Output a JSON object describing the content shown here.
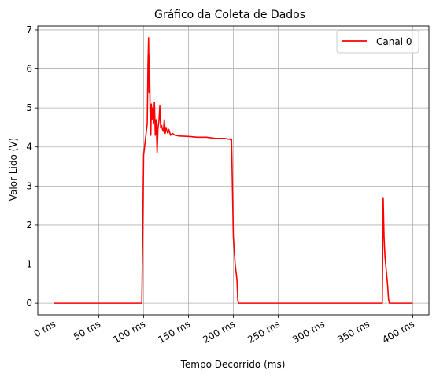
{
  "chart_data": {
    "type": "line",
    "title": "Gráfico da Coleta de Dados",
    "xlabel": "Tempo Decorrido (ms)",
    "ylabel": "Valor Lido (V)",
    "xlim": [
      -18,
      418
    ],
    "ylim": [
      -0.3,
      7.1
    ],
    "x_ticks": [
      0,
      50,
      100,
      150,
      200,
      250,
      300,
      350,
      400
    ],
    "x_tick_labels": [
      "0 ms",
      "50 ms",
      "100 ms",
      "150 ms",
      "200 ms",
      "250 ms",
      "300 ms",
      "350 ms",
      "400 ms"
    ],
    "y_ticks": [
      0,
      1,
      2,
      3,
      4,
      5,
      6,
      7
    ],
    "y_tick_labels": [
      "0",
      "1",
      "2",
      "3",
      "4",
      "5",
      "6",
      "7"
    ],
    "grid": true,
    "legend_position": "top-right",
    "series": [
      {
        "name": "Canal 0",
        "color": "#ff0000",
        "x": [
          0,
          50,
          98,
          100,
          102,
          104,
          104.8,
          105.5,
          106,
          106.5,
          107.2,
          108,
          108.6,
          109.2,
          110,
          111,
          112,
          113,
          114,
          115,
          116,
          117,
          118,
          119,
          120,
          121,
          122,
          123,
          124,
          125,
          126,
          127,
          128,
          130,
          132,
          135,
          140,
          150,
          160,
          170,
          180,
          190,
          195,
          196,
          197,
          198,
          200,
          202,
          204,
          205,
          206,
          250,
          300,
          366,
          367,
          368,
          369,
          370,
          371,
          372,
          373,
          374,
          375,
          400
        ],
        "y": [
          0,
          0,
          0,
          3.8,
          4.2,
          4.6,
          6.1,
          6.8,
          5.4,
          6.35,
          4.9,
          4.3,
          5.1,
          4.7,
          5.0,
          4.6,
          5.15,
          4.3,
          4.7,
          3.85,
          4.5,
          4.65,
          5.05,
          4.5,
          4.55,
          4.45,
          4.4,
          4.7,
          4.35,
          4.5,
          4.4,
          4.35,
          4.45,
          4.3,
          4.35,
          4.3,
          4.28,
          4.27,
          4.25,
          4.25,
          4.22,
          4.22,
          4.2,
          4.21,
          4.18,
          4.2,
          1.7,
          1.0,
          0.6,
          0.05,
          0,
          0,
          0,
          0,
          2.7,
          1.7,
          1.2,
          0.95,
          0.7,
          0.45,
          0.1,
          0,
          0,
          0
        ]
      }
    ]
  }
}
